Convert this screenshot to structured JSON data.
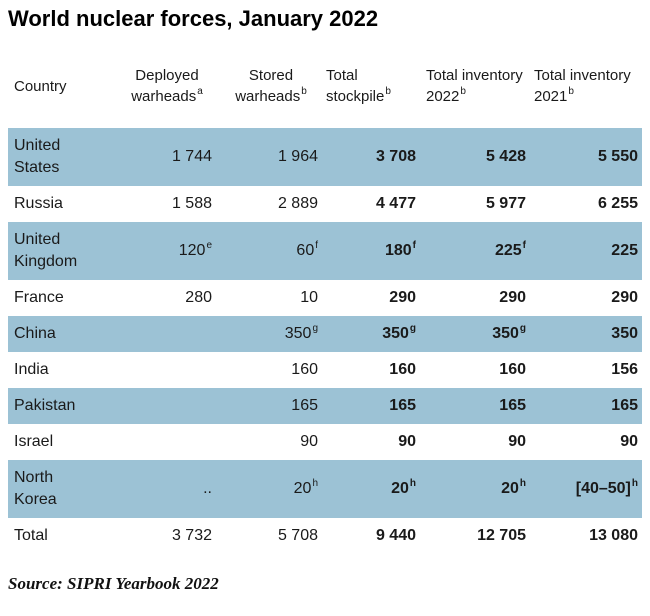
{
  "title": "World nuclear forces, January 2022",
  "source": "Source: SIPRI Yearbook 2022",
  "colors": {
    "row_highlight": "#9cc2d5",
    "text": "#1a1a1a",
    "background": "#ffffff"
  },
  "chart_data": {
    "type": "table",
    "title": "World nuclear forces, January 2022",
    "columns": [
      {
        "label": "Country",
        "sup": null
      },
      {
        "label": "Deployed warheads",
        "sup": "a"
      },
      {
        "label": "Stored warheads",
        "sup": "b"
      },
      {
        "label": "Total stockpile",
        "sup": "b"
      },
      {
        "label": "Total inventory 2022",
        "sup": "b"
      },
      {
        "label": "Total inventory 2021",
        "sup": "b"
      }
    ],
    "rows": [
      {
        "country": "United States",
        "highlight": true,
        "cells": [
          {
            "text": "1 744"
          },
          {
            "text": "1 964"
          },
          {
            "text": "3 708",
            "bold": true
          },
          {
            "text": "5 428",
            "bold": true
          },
          {
            "text": "5 550",
            "bold": true
          }
        ]
      },
      {
        "country": "Russia",
        "highlight": false,
        "cells": [
          {
            "text": "1 588"
          },
          {
            "text": "2 889"
          },
          {
            "text": "4 477",
            "bold": true
          },
          {
            "text": "5 977",
            "bold": true
          },
          {
            "text": "6 255",
            "bold": true
          }
        ]
      },
      {
        "country": "United Kingdom",
        "highlight": true,
        "cells": [
          {
            "text": "120",
            "sup": "e"
          },
          {
            "text": "60",
            "sup": "f"
          },
          {
            "text": "180",
            "sup": "f",
            "bold": true
          },
          {
            "text": "225",
            "sup": "f",
            "bold": true
          },
          {
            "text": "225",
            "bold": true
          }
        ]
      },
      {
        "country": "France",
        "highlight": false,
        "cells": [
          {
            "text": "280"
          },
          {
            "text": "10"
          },
          {
            "text": "290",
            "bold": true
          },
          {
            "text": "290",
            "bold": true
          },
          {
            "text": "290",
            "bold": true
          }
        ]
      },
      {
        "country": "China",
        "highlight": true,
        "cells": [
          {
            "text": ""
          },
          {
            "text": "350",
            "sup": "g"
          },
          {
            "text": "350",
            "sup": "g",
            "bold": true
          },
          {
            "text": "350",
            "sup": "g",
            "bold": true
          },
          {
            "text": "350",
            "bold": true
          }
        ]
      },
      {
        "country": "India",
        "highlight": false,
        "cells": [
          {
            "text": ""
          },
          {
            "text": "160"
          },
          {
            "text": "160",
            "bold": true
          },
          {
            "text": "160",
            "bold": true
          },
          {
            "text": "156",
            "bold": true
          }
        ]
      },
      {
        "country": "Pakistan",
        "highlight": true,
        "cells": [
          {
            "text": ""
          },
          {
            "text": "165"
          },
          {
            "text": "165",
            "bold": true
          },
          {
            "text": "165",
            "bold": true
          },
          {
            "text": "165",
            "bold": true
          }
        ]
      },
      {
        "country": "Israel",
        "highlight": false,
        "cells": [
          {
            "text": ""
          },
          {
            "text": "90"
          },
          {
            "text": "90",
            "bold": true
          },
          {
            "text": "90",
            "bold": true
          },
          {
            "text": "90",
            "bold": true
          }
        ]
      },
      {
        "country": "North Korea",
        "highlight": true,
        "cells": [
          {
            "text": ".."
          },
          {
            "text": "20",
            "sup": "h"
          },
          {
            "text": "20",
            "sup": "h",
            "bold": true
          },
          {
            "text": "20",
            "sup": "h",
            "bold": true
          },
          {
            "text": "[40–50]",
            "sup": "h",
            "bold": true
          }
        ]
      },
      {
        "country": "Total",
        "highlight": false,
        "total": true,
        "cells": [
          {
            "text": "3 732"
          },
          {
            "text": "5 708"
          },
          {
            "text": "9 440",
            "bold": true
          },
          {
            "text": "12 705",
            "bold": true
          },
          {
            "text": "13 080",
            "bold": true
          }
        ]
      }
    ]
  }
}
